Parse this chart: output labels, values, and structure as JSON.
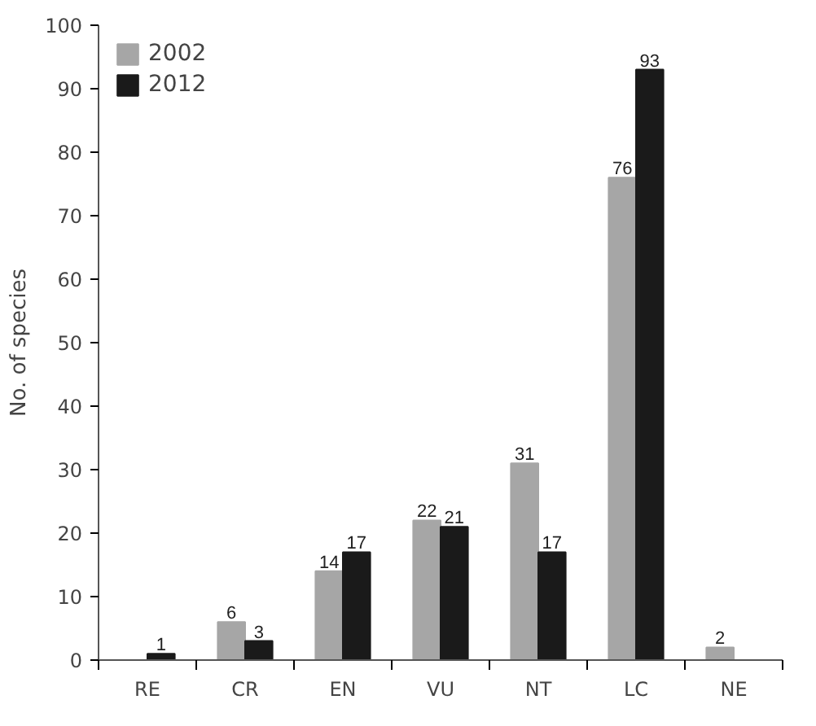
{
  "chart_data": {
    "type": "bar",
    "ylabel": "No. of species",
    "categories": [
      "RE",
      "CR",
      "EN",
      "VU",
      "NT",
      "LC",
      "NE"
    ],
    "series": [
      {
        "name": "2002",
        "color": "#a6a6a6",
        "values": [
          null,
          6,
          14,
          22,
          31,
          76,
          2
        ],
        "value_labels": [
          null,
          "6",
          "14",
          "22",
          "31",
          "76",
          "2"
        ]
      },
      {
        "name": "2012",
        "color": "#1a1a1a",
        "values": [
          1,
          3,
          17,
          21,
          17,
          93,
          null
        ],
        "value_labels": [
          "1",
          "3",
          "17",
          "21",
          "17",
          "93",
          null
        ]
      }
    ],
    "ylim": [
      0,
      100
    ],
    "yticks": [
      0,
      10,
      20,
      30,
      40,
      50,
      60,
      70,
      80,
      90,
      100
    ],
    "grid": false,
    "legend": "top left"
  }
}
